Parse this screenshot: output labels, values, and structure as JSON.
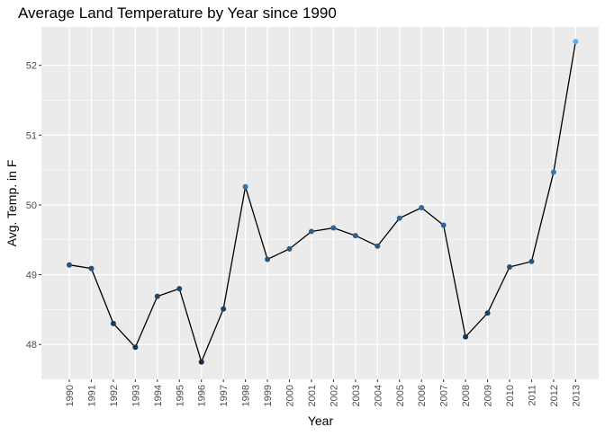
{
  "chart_data": {
    "type": "line",
    "title": "Average Land Temperature by Year since 1990",
    "xlabel": "Year",
    "ylabel": "Avg. Temp. in F",
    "x": [
      "1990",
      "1991",
      "1992",
      "1993",
      "1994",
      "1995",
      "1996",
      "1997",
      "1998",
      "1999",
      "2000",
      "2001",
      "2002",
      "2003",
      "2004",
      "2005",
      "2006",
      "2007",
      "2008",
      "2009",
      "2010",
      "2011",
      "2012",
      "2013"
    ],
    "values": [
      49.14,
      49.09,
      48.3,
      47.96,
      48.69,
      48.8,
      47.75,
      48.51,
      50.26,
      49.22,
      49.37,
      49.62,
      49.67,
      49.56,
      49.41,
      49.81,
      49.96,
      49.71,
      48.11,
      48.45,
      49.11,
      49.19,
      50.47,
      52.34
    ],
    "ylim": [
      47.5,
      52.55
    ],
    "y_ticks": [
      48,
      49,
      50,
      51,
      52
    ],
    "y_tick_labels": [
      "48",
      "49",
      "50",
      "51",
      "52"
    ],
    "grid": true,
    "point_color_low": "#132b43",
    "point_color_high": "#56b1f7",
    "line_color": "#000000",
    "panel_background": "#ebebeb",
    "grid_color": "#ffffff"
  }
}
